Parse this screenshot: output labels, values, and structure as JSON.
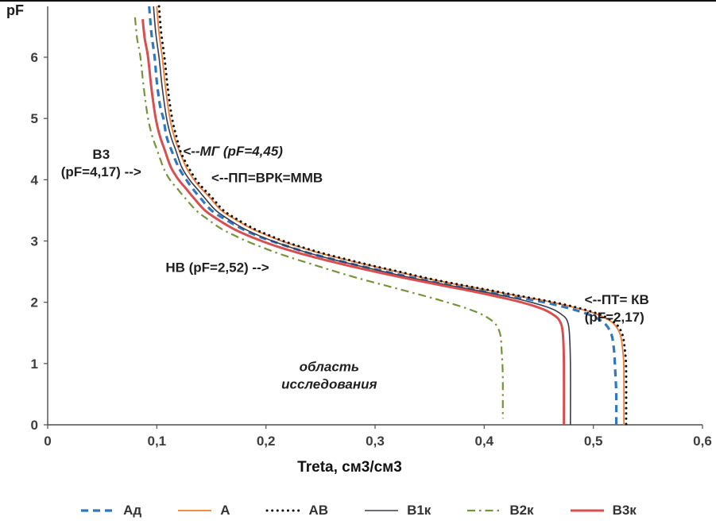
{
  "chart_data": {
    "type": "line",
    "title": "",
    "xlabel": "Treta, см3/см3",
    "ylabel": "pF",
    "xlim": [
      0,
      0.6
    ],
    "ylim": [
      0,
      6.83
    ],
    "grid": false,
    "legend_position": "bottom",
    "x_ticks": [
      {
        "v": 0,
        "label": "0"
      },
      {
        "v": 0.1,
        "label": "0,1"
      },
      {
        "v": 0.2,
        "label": "0,2"
      },
      {
        "v": 0.3,
        "label": "0,3"
      },
      {
        "v": 0.4,
        "label": "0,4"
      },
      {
        "v": 0.5,
        "label": "0,5"
      },
      {
        "v": 0.6,
        "label": "0,6"
      }
    ],
    "y_ticks": [
      {
        "v": 0,
        "label": "0"
      },
      {
        "v": 1,
        "label": "1"
      },
      {
        "v": 2,
        "label": "2"
      },
      {
        "v": 3,
        "label": "3"
      },
      {
        "v": 4,
        "label": "4"
      },
      {
        "v": 5,
        "label": "5"
      },
      {
        "v": 6,
        "label": "6"
      }
    ],
    "series": [
      {
        "name": "Ад",
        "color": "#2f78bf",
        "width": 3.2,
        "dash": "9 6",
        "cap": "butt",
        "points": [
          [
            0.093,
            6.83
          ],
          [
            0.095,
            6.4
          ],
          [
            0.098,
            6.0
          ],
          [
            0.1,
            5.6
          ],
          [
            0.103,
            5.2
          ],
          [
            0.106,
            5.0
          ],
          [
            0.109,
            4.7
          ],
          [
            0.113,
            4.5
          ],
          [
            0.12,
            4.2
          ],
          [
            0.127,
            4.0
          ],
          [
            0.133,
            3.85
          ],
          [
            0.14,
            3.7
          ],
          [
            0.15,
            3.5
          ],
          [
            0.163,
            3.35
          ],
          [
            0.178,
            3.2
          ],
          [
            0.19,
            3.1
          ],
          [
            0.205,
            3.0
          ],
          [
            0.222,
            2.9
          ],
          [
            0.24,
            2.8
          ],
          [
            0.262,
            2.7
          ],
          [
            0.285,
            2.6
          ],
          [
            0.31,
            2.5
          ],
          [
            0.335,
            2.4
          ],
          [
            0.362,
            2.3
          ],
          [
            0.393,
            2.2
          ],
          [
            0.424,
            2.1
          ],
          [
            0.455,
            2.0
          ],
          [
            0.478,
            1.9
          ],
          [
            0.496,
            1.8
          ],
          [
            0.507,
            1.7
          ],
          [
            0.513,
            1.6
          ],
          [
            0.517,
            1.45
          ],
          [
            0.519,
            1.2
          ],
          [
            0.52,
            0.9
          ],
          [
            0.521,
            0.5
          ],
          [
            0.521,
            0.0
          ]
        ]
      },
      {
        "name": "А",
        "color": "#ED7D31",
        "width": 1.8,
        "dash": "",
        "cap": "butt",
        "points": [
          [
            0.1,
            6.83
          ],
          [
            0.102,
            6.4
          ],
          [
            0.105,
            6.0
          ],
          [
            0.108,
            5.5
          ],
          [
            0.112,
            5.0
          ],
          [
            0.116,
            4.7
          ],
          [
            0.12,
            4.5
          ],
          [
            0.127,
            4.2
          ],
          [
            0.134,
            4.0
          ],
          [
            0.141,
            3.85
          ],
          [
            0.149,
            3.7
          ],
          [
            0.159,
            3.5
          ],
          [
            0.172,
            3.35
          ],
          [
            0.187,
            3.2
          ],
          [
            0.2,
            3.1
          ],
          [
            0.214,
            3.0
          ],
          [
            0.231,
            2.9
          ],
          [
            0.25,
            2.8
          ],
          [
            0.272,
            2.7
          ],
          [
            0.295,
            2.6
          ],
          [
            0.32,
            2.5
          ],
          [
            0.344,
            2.4
          ],
          [
            0.372,
            2.3
          ],
          [
            0.402,
            2.2
          ],
          [
            0.432,
            2.1
          ],
          [
            0.462,
            2.0
          ],
          [
            0.486,
            1.9
          ],
          [
            0.504,
            1.8
          ],
          [
            0.515,
            1.7
          ],
          [
            0.521,
            1.6
          ],
          [
            0.525,
            1.45
          ],
          [
            0.527,
            1.2
          ],
          [
            0.528,
            0.9
          ],
          [
            0.528,
            0.0
          ]
        ]
      },
      {
        "name": "АВ",
        "color": "#111111",
        "width": 3,
        "dash": "0.1 6.5",
        "cap": "round",
        "points": [
          [
            0.102,
            6.83
          ],
          [
            0.104,
            6.4
          ],
          [
            0.107,
            6.0
          ],
          [
            0.11,
            5.5
          ],
          [
            0.114,
            5.0
          ],
          [
            0.118,
            4.7
          ],
          [
            0.122,
            4.45
          ],
          [
            0.129,
            4.2
          ],
          [
            0.136,
            4.0
          ],
          [
            0.143,
            3.85
          ],
          [
            0.151,
            3.7
          ],
          [
            0.161,
            3.5
          ],
          [
            0.174,
            3.35
          ],
          [
            0.189,
            3.2
          ],
          [
            0.202,
            3.1
          ],
          [
            0.216,
            3.0
          ],
          [
            0.233,
            2.9
          ],
          [
            0.252,
            2.8
          ],
          [
            0.274,
            2.7
          ],
          [
            0.297,
            2.6
          ],
          [
            0.322,
            2.5
          ],
          [
            0.346,
            2.4
          ],
          [
            0.374,
            2.3
          ],
          [
            0.404,
            2.2
          ],
          [
            0.434,
            2.1
          ],
          [
            0.464,
            2.0
          ],
          [
            0.488,
            1.9
          ],
          [
            0.506,
            1.8
          ],
          [
            0.517,
            1.7
          ],
          [
            0.523,
            1.6
          ],
          [
            0.527,
            1.45
          ],
          [
            0.529,
            1.2
          ],
          [
            0.53,
            0.9
          ],
          [
            0.53,
            0.0
          ]
        ]
      },
      {
        "name": "В1к",
        "color": "#3b3b4f",
        "width": 1.6,
        "dash": "",
        "cap": "butt",
        "points": [
          [
            0.097,
            6.83
          ],
          [
            0.099,
            6.4
          ],
          [
            0.102,
            6.0
          ],
          [
            0.105,
            5.5
          ],
          [
            0.109,
            5.0
          ],
          [
            0.113,
            4.7
          ],
          [
            0.117,
            4.5
          ],
          [
            0.123,
            4.2
          ],
          [
            0.13,
            4.0
          ],
          [
            0.137,
            3.85
          ],
          [
            0.144,
            3.7
          ],
          [
            0.154,
            3.5
          ],
          [
            0.166,
            3.35
          ],
          [
            0.18,
            3.2
          ],
          [
            0.192,
            3.1
          ],
          [
            0.206,
            3.0
          ],
          [
            0.222,
            2.9
          ],
          [
            0.24,
            2.8
          ],
          [
            0.261,
            2.7
          ],
          [
            0.284,
            2.6
          ],
          [
            0.308,
            2.5
          ],
          [
            0.333,
            2.4
          ],
          [
            0.361,
            2.3
          ],
          [
            0.391,
            2.2
          ],
          [
            0.419,
            2.1
          ],
          [
            0.443,
            2.0
          ],
          [
            0.461,
            1.9
          ],
          [
            0.471,
            1.8
          ],
          [
            0.476,
            1.7
          ],
          [
            0.478,
            1.5
          ],
          [
            0.479,
            1.0
          ],
          [
            0.479,
            0.0
          ]
        ]
      },
      {
        "name": "В2к",
        "color": "#76933C",
        "width": 2.2,
        "dash": "10 5 2.5 5",
        "cap": "butt",
        "points": [
          [
            0.08,
            6.65
          ],
          [
            0.082,
            6.3
          ],
          [
            0.085,
            6.0
          ],
          [
            0.088,
            5.5
          ],
          [
            0.092,
            5.0
          ],
          [
            0.096,
            4.7
          ],
          [
            0.1,
            4.5
          ],
          [
            0.106,
            4.2
          ],
          [
            0.112,
            4.0
          ],
          [
            0.119,
            3.85
          ],
          [
            0.126,
            3.7
          ],
          [
            0.136,
            3.5
          ],
          [
            0.147,
            3.35
          ],
          [
            0.159,
            3.2
          ],
          [
            0.17,
            3.1
          ],
          [
            0.182,
            3.0
          ],
          [
            0.196,
            2.9
          ],
          [
            0.211,
            2.8
          ],
          [
            0.228,
            2.7
          ],
          [
            0.246,
            2.6
          ],
          [
            0.264,
            2.5
          ],
          [
            0.283,
            2.4
          ],
          [
            0.304,
            2.3
          ],
          [
            0.325,
            2.2
          ],
          [
            0.346,
            2.1
          ],
          [
            0.366,
            2.0
          ],
          [
            0.384,
            1.9
          ],
          [
            0.398,
            1.8
          ],
          [
            0.407,
            1.7
          ],
          [
            0.412,
            1.6
          ],
          [
            0.415,
            1.45
          ],
          [
            0.416,
            1.2
          ],
          [
            0.417,
            0.8
          ],
          [
            0.417,
            0.1
          ]
        ]
      },
      {
        "name": "В3к",
        "color": "#d94f4f",
        "width": 3,
        "dash": "",
        "cap": "butt",
        "points": [
          [
            0.087,
            6.62
          ],
          [
            0.089,
            6.3
          ],
          [
            0.092,
            6.0
          ],
          [
            0.095,
            5.5
          ],
          [
            0.099,
            5.0
          ],
          [
            0.103,
            4.7
          ],
          [
            0.107,
            4.5
          ],
          [
            0.113,
            4.2
          ],
          [
            0.12,
            4.0
          ],
          [
            0.127,
            3.85
          ],
          [
            0.134,
            3.7
          ],
          [
            0.144,
            3.5
          ],
          [
            0.156,
            3.35
          ],
          [
            0.17,
            3.2
          ],
          [
            0.182,
            3.1
          ],
          [
            0.196,
            3.0
          ],
          [
            0.212,
            2.9
          ],
          [
            0.231,
            2.8
          ],
          [
            0.252,
            2.7
          ],
          [
            0.275,
            2.6
          ],
          [
            0.3,
            2.5
          ],
          [
            0.326,
            2.4
          ],
          [
            0.354,
            2.3
          ],
          [
            0.383,
            2.2
          ],
          [
            0.41,
            2.1
          ],
          [
            0.434,
            2.0
          ],
          [
            0.452,
            1.9
          ],
          [
            0.463,
            1.8
          ],
          [
            0.469,
            1.7
          ],
          [
            0.472,
            1.5
          ],
          [
            0.473,
            1.0
          ],
          [
            0.473,
            0.0
          ]
        ]
      }
    ],
    "annotations": [
      {
        "lines": [
          "В3",
          "(pF=4,17) -->"
        ],
        "x": 0.049,
        "pF": 4.42,
        "anchor": "middle",
        "italic": false
      },
      {
        "lines": [
          "<--МГ (pF=4,45)"
        ],
        "x": 0.124,
        "pF": 4.47,
        "anchor": "start",
        "italic": true
      },
      {
        "lines": [
          "<--ПП=ВРК=ММВ"
        ],
        "x": 0.15,
        "pF": 4.04,
        "anchor": "start",
        "italic": false
      },
      {
        "lines": [
          "НВ (pF=2,52) -->"
        ],
        "x": 0.108,
        "pF": 2.57,
        "anchor": "start",
        "italic": false
      },
      {
        "lines": [
          "<--ПТ= КВ",
          "(pF=2,17)"
        ],
        "x": 0.492,
        "pF": 2.05,
        "anchor": "start",
        "italic": false
      },
      {
        "lines": [
          "область",
          "исследования"
        ],
        "x": 0.258,
        "pF": 0.95,
        "anchor": "middle",
        "italic": true
      }
    ]
  }
}
